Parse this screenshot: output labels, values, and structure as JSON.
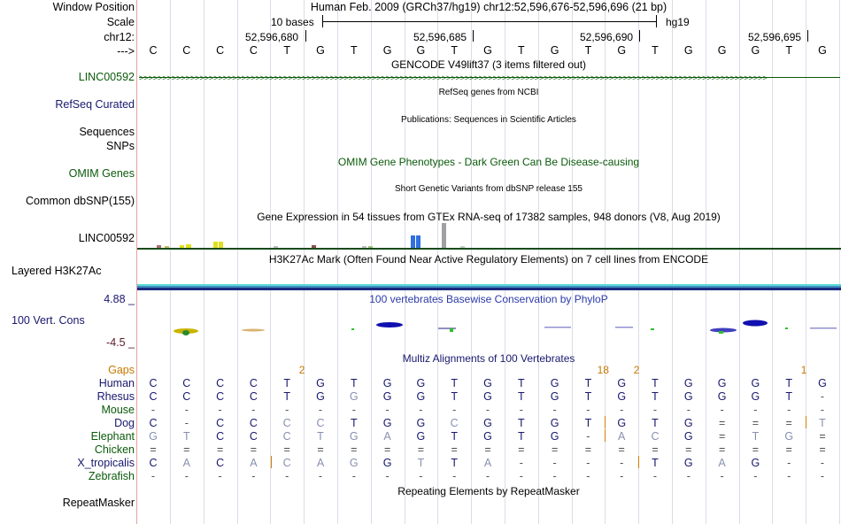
{
  "sidebar": {
    "window_position": "Window Position",
    "scale": "Scale",
    "chrom": "chr12:",
    "arrow": "--->",
    "linc": "LINC00592",
    "refseq": "RefSeq Curated",
    "sequences": "Sequences",
    "snps": "SNPs",
    "omim": "OMIM Genes",
    "dbsnp": "Common dbSNP(155)",
    "gtex_label": "LINC00592",
    "h3k27ac": "Layered H3K27Ac",
    "phylop_max": "4.88 _",
    "vert_cons": "100 Vert. Cons",
    "phylop_min": "-4.5 _",
    "gaps": "Gaps",
    "repeatmasker": "RepeatMasker"
  },
  "header": {
    "assembly": "Human Feb. 2009 (GRCh37/hg19)   chr12:52,596,676-52,596,696 (21 bp)",
    "scale_text": "10 bases",
    "scale_db": "hg19",
    "coord_labels": [
      "52,596,680",
      "52,596,685",
      "52,596,690",
      "52,596,695"
    ]
  },
  "sequence": [
    "C",
    "C",
    "C",
    "C",
    "T",
    "G",
    "T",
    "G",
    "G",
    "T",
    "G",
    "T",
    "G",
    "T",
    "G",
    "T",
    "G",
    "G",
    "G",
    "T",
    "G"
  ],
  "tracks": {
    "gencode": "GENCODE V49lift37 (3 items filtered out)",
    "refseq_title": "RefSeq genes from NCBI",
    "publications": "Publications: Sequences in Scientific Articles",
    "omim_title": "OMIM Gene Phenotypes - Dark Green Can Be Disease-causing",
    "dbsnp_title": "Short Genetic Variants from dbSNP release 155",
    "gtex_title": "Gene Expression in 54 tissues from GTEx RNA-seq of 17382 samples, 948 donors (V8, Aug 2019)",
    "h3k27ac_title": "H3K27Ac Mark (Often Found Near Active Regulatory Elements) on 7 cell lines from ENCODE",
    "phylop_title": "100 vertebrates Basewise Conservation by PhyloP",
    "multiz_title": "Multiz Alignments of 100 Vertebrates",
    "repeat_title": "Repeating Elements by RepeatMasker"
  },
  "gap_counts": [
    {
      "col": 4,
      "text": "2"
    },
    {
      "col": 13,
      "text": "18"
    },
    {
      "col": 14,
      "text": "2"
    },
    {
      "col": 19,
      "text": "1"
    }
  ],
  "species": [
    {
      "name": "Human",
      "color": "navy",
      "seq": [
        "C",
        "C",
        "C",
        "C",
        "T",
        "G",
        "T",
        "G",
        "G",
        "T",
        "G",
        "T",
        "G",
        "T",
        "G",
        "T",
        "G",
        "G",
        "G",
        "T",
        "G"
      ]
    },
    {
      "name": "Rhesus",
      "color": "navy",
      "seq": [
        "C",
        "C",
        "C",
        "C",
        "T",
        "G",
        "G",
        "G",
        "G",
        "T",
        "G",
        "T",
        "G",
        "T",
        "G",
        "T",
        "G",
        "G",
        "G",
        "T",
        "-"
      ]
    },
    {
      "name": "Mouse",
      "color": "green",
      "seq": [
        "-",
        "-",
        "-",
        "-",
        "-",
        "-",
        "-",
        "-",
        "-",
        "-",
        "-",
        "-",
        "-",
        "-",
        "-",
        "-",
        "-",
        "-",
        "-",
        "-",
        "-"
      ]
    },
    {
      "name": "Dog",
      "color": "navy",
      "seq": [
        "C",
        "-",
        "C",
        "C",
        "C",
        "C",
        "T",
        "G",
        "G",
        "C",
        "G",
        "T",
        "G",
        "T",
        "G",
        "T",
        "G",
        "=",
        "=",
        "=",
        "T"
      ]
    },
    {
      "name": "Elephant",
      "color": "green",
      "seq": [
        "G",
        "T",
        "C",
        "C",
        "C",
        "T",
        "G",
        "A",
        "G",
        "T",
        "G",
        "T",
        "G",
        "-",
        "A",
        "C",
        "G",
        "=",
        "T",
        "G",
        "="
      ]
    },
    {
      "name": "Chicken",
      "color": "green",
      "seq": [
        "=",
        "=",
        "=",
        "=",
        "=",
        "=",
        "=",
        "=",
        "=",
        "=",
        "=",
        "=",
        "=",
        "=",
        "=",
        "=",
        "=",
        "=",
        "=",
        "=",
        "="
      ]
    },
    {
      "name": "X_tropicalis",
      "color": "navy",
      "seq": [
        "C",
        "A",
        "C",
        "A",
        "C",
        "A",
        "G",
        "G",
        "T",
        "T",
        "A",
        "-",
        "-",
        "-",
        "-",
        "T",
        "G",
        "A",
        "G",
        "-",
        "-"
      ]
    },
    {
      "name": "Zebrafish",
      "color": "green",
      "seq": [
        "-",
        "-",
        "-",
        "-",
        "-",
        "-",
        "-",
        "-",
        "-",
        "-",
        "-",
        "-",
        "-",
        "-",
        "-",
        "-",
        "-",
        "-",
        "-",
        "-",
        "-"
      ]
    }
  ],
  "colors": {
    "navy": "#18186e",
    "green": "#0a5a0a",
    "gray": "#8890b0",
    "orange": "#c87800"
  }
}
